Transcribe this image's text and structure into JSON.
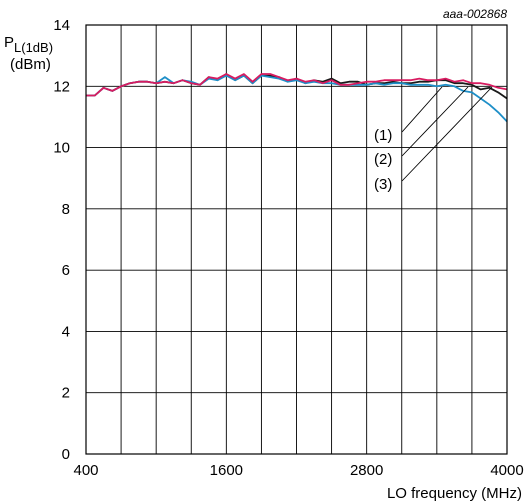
{
  "chart_data": {
    "type": "line",
    "reference": "aaa-002868",
    "ylabel_main": "P",
    "ylabel_sub": "L(1dB)",
    "ylabel_unit": "(dBm)",
    "xlabel": "LO frequency (MHz)",
    "xlim": [
      400,
      4000
    ],
    "ylim": [
      0,
      14
    ],
    "xticks": [
      400,
      1600,
      2800,
      4000
    ],
    "yticks": [
      0,
      2,
      4,
      6,
      8,
      10,
      12,
      14
    ],
    "grid": true,
    "colors": {
      "s1": "#1a1a1a",
      "s2": "#1e8fc8",
      "s3": "#d81b60"
    },
    "x": [
      400,
      475,
      550,
      625,
      700,
      775,
      850,
      925,
      1000,
      1075,
      1150,
      1225,
      1300,
      1375,
      1450,
      1525,
      1600,
      1675,
      1750,
      1825,
      1900,
      1975,
      2050,
      2125,
      2200,
      2275,
      2350,
      2425,
      2500,
      2575,
      2650,
      2725,
      2800,
      2875,
      2950,
      3025,
      3100,
      3175,
      3250,
      3325,
      3400,
      3475,
      3550,
      3625,
      3700,
      3775,
      3850,
      3925,
      4000
    ],
    "series": [
      {
        "name": "(1)",
        "values": [
          11.7,
          11.7,
          11.95,
          11.85,
          12.0,
          12.1,
          12.15,
          12.15,
          12.1,
          12.15,
          12.1,
          12.2,
          12.1,
          12.05,
          12.3,
          12.2,
          12.4,
          12.2,
          12.35,
          12.1,
          12.35,
          12.35,
          12.3,
          12.15,
          12.25,
          12.1,
          12.2,
          12.15,
          12.25,
          12.1,
          12.15,
          12.15,
          12.05,
          12.1,
          12.1,
          12.15,
          12.1,
          12.1,
          12.15,
          12.15,
          12.2,
          12.2,
          12.1,
          12.1,
          12.05,
          11.9,
          11.95,
          11.8,
          11.6
        ]
      },
      {
        "name": "(2)",
        "values": [
          11.7,
          11.7,
          11.95,
          11.85,
          12.0,
          12.1,
          12.15,
          12.15,
          12.1,
          12.3,
          12.1,
          12.2,
          12.15,
          12.05,
          12.25,
          12.2,
          12.35,
          12.2,
          12.35,
          12.1,
          12.35,
          12.3,
          12.25,
          12.15,
          12.2,
          12.1,
          12.15,
          12.1,
          12.1,
          12.05,
          12.05,
          12.05,
          12.05,
          12.1,
          12.05,
          12.1,
          12.1,
          12.05,
          12.05,
          12.05,
          12.0,
          12.05,
          12.0,
          11.85,
          11.8,
          11.6,
          11.4,
          11.15,
          10.85
        ]
      },
      {
        "name": "(3)",
        "values": [
          11.7,
          11.7,
          11.95,
          11.85,
          12.0,
          12.1,
          12.15,
          12.15,
          12.1,
          12.15,
          12.1,
          12.2,
          12.1,
          12.05,
          12.3,
          12.25,
          12.4,
          12.25,
          12.4,
          12.15,
          12.4,
          12.4,
          12.3,
          12.2,
          12.25,
          12.15,
          12.2,
          12.1,
          12.2,
          12.05,
          12.05,
          12.1,
          12.15,
          12.15,
          12.2,
          12.2,
          12.2,
          12.2,
          12.25,
          12.2,
          12.2,
          12.25,
          12.15,
          12.2,
          12.1,
          12.1,
          12.05,
          11.95,
          11.9
        ]
      }
    ]
  }
}
